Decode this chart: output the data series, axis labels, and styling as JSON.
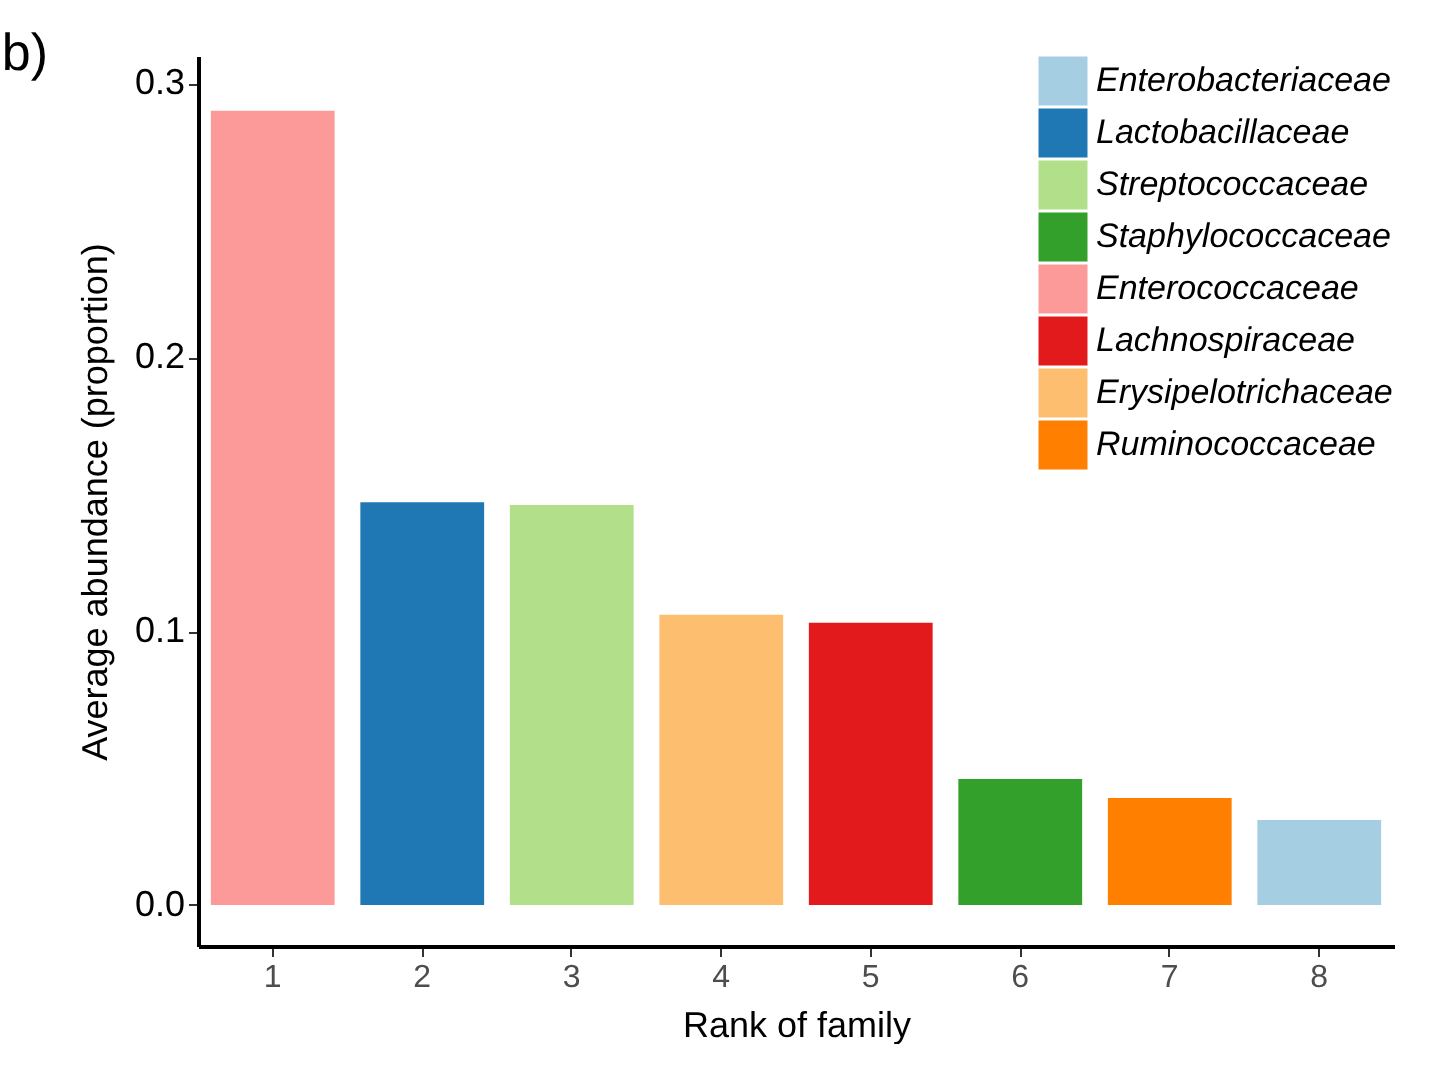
{
  "chart_data": {
    "type": "bar",
    "xlabel": "Rank of family",
    "ylabel": "Average abundance (proportion)",
    "categories": [
      "1",
      "2",
      "3",
      "4",
      "5",
      "6",
      "7",
      "8"
    ],
    "series": [
      {
        "name": "Enterobacteriaceae",
        "color": "#a6cee3",
        "values": [
          null,
          null,
          null,
          null,
          null,
          null,
          null,
          0.031
        ]
      },
      {
        "name": "Lactobacillaceae",
        "color": "#1f78b4",
        "values": [
          null,
          0.147,
          null,
          null,
          null,
          null,
          null,
          null
        ]
      },
      {
        "name": "Streptococcaceae",
        "color": "#b2df8a",
        "values": [
          null,
          null,
          0.146,
          null,
          null,
          null,
          null,
          null
        ]
      },
      {
        "name": "Staphylococcaceae",
        "color": "#33a02c",
        "values": [
          null,
          null,
          null,
          null,
          null,
          0.046,
          null,
          null
        ]
      },
      {
        "name": "Enterococcaceae",
        "color": "#fb9a99",
        "values": [
          0.29,
          null,
          null,
          null,
          null,
          null,
          null,
          null
        ]
      },
      {
        "name": "Lachnospiraceae",
        "color": "#e31a1c",
        "values": [
          null,
          null,
          null,
          null,
          0.103,
          null,
          null,
          null
        ]
      },
      {
        "name": "Erysipelotrichaceae",
        "color": "#fdbf6f",
        "values": [
          null,
          null,
          null,
          0.106,
          null,
          null,
          null,
          null
        ]
      },
      {
        "name": "Ruminococcaceae",
        "color": "#ff7f00",
        "values": [
          null,
          null,
          null,
          null,
          null,
          null,
          0.039,
          null
        ]
      }
    ],
    "ylim": [
      -0.015,
      0.31
    ],
    "yticks": [
      {
        "value": 0,
        "label": "0.0"
      },
      {
        "value": 0.1,
        "label": "0.1"
      },
      {
        "value": 0.2,
        "label": "0.2"
      },
      {
        "value": 0.3,
        "label": "0.3"
      }
    ],
    "grid": false,
    "legend": "top right",
    "annotations": [
      "b)"
    ]
  }
}
